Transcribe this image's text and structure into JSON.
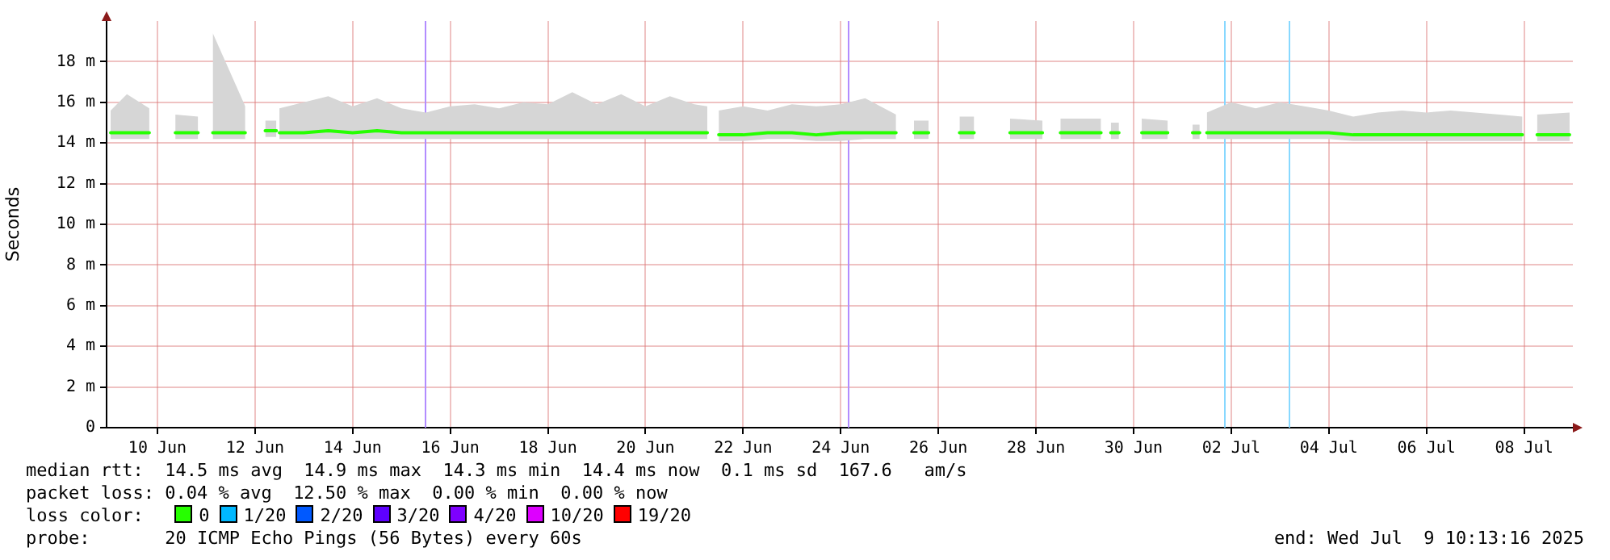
{
  "chart_data": {
    "type": "line",
    "ylabel": "Seconds",
    "legend_title": "loss color:",
    "legend": "bottom left",
    "grid": true,
    "marker": "none",
    "line_style": "solid",
    "xlim": [
      "2025-06-08T23:00",
      "2025-07-09T00:00"
    ],
    "xticks": [
      {
        "value": "2025-06-10",
        "label": "10 Jun"
      },
      {
        "value": "2025-06-12",
        "label": "12 Jun"
      },
      {
        "value": "2025-06-14",
        "label": "14 Jun"
      },
      {
        "value": "2025-06-16",
        "label": "16 Jun"
      },
      {
        "value": "2025-06-18",
        "label": "18 Jun"
      },
      {
        "value": "2025-06-20",
        "label": "20 Jun"
      },
      {
        "value": "2025-06-22",
        "label": "22 Jun"
      },
      {
        "value": "2025-06-24",
        "label": "24 Jun"
      },
      {
        "value": "2025-06-26",
        "label": "26 Jun"
      },
      {
        "value": "2025-06-28",
        "label": "28 Jun"
      },
      {
        "value": "2025-06-30",
        "label": "30 Jun"
      },
      {
        "value": "2025-07-02",
        "label": "02 Jul"
      },
      {
        "value": "2025-07-04",
        "label": "04 Jul"
      },
      {
        "value": "2025-07-06",
        "label": "06 Jul"
      },
      {
        "value": "2025-07-08",
        "label": "08 Jul"
      }
    ],
    "ylim": [
      0,
      20
    ],
    "yticks": [
      0,
      {
        "value": 2,
        "label": "2 m"
      },
      {
        "value": 4,
        "label": "4 m"
      },
      {
        "value": 6,
        "label": "6 m"
      },
      {
        "value": 8,
        "label": "8 m"
      },
      {
        "value": 10,
        "label": "10 m"
      },
      {
        "value": 12,
        "label": "12 m"
      },
      {
        "value": 14,
        "label": "14 m"
      },
      {
        "value": 16,
        "label": "16 m"
      },
      {
        "value": 18,
        "label": "18 m"
      }
    ],
    "x": [
      "2025-06-09T01:00",
      "2025-06-09T09:00",
      "2025-06-09T20:00",
      "2025-06-10T02:00",
      "2025-06-10T08:48",
      "2025-06-10T20:00",
      "2025-06-11T00:00",
      "2025-06-11T03:12",
      "2025-06-11T19:12",
      "2025-06-12T02:00",
      "2025-06-12T05:00",
      "2025-06-12T10:30",
      "2025-06-12T11:15",
      "2025-06-12T12:00",
      "2025-06-13T00:00",
      "2025-06-13T12:00",
      "2025-06-14T00:00",
      "2025-06-14T12:00",
      "2025-06-15T00:00",
      "2025-06-15T12:00",
      "2025-06-16T00:00",
      "2025-06-16T12:00",
      "2025-06-17T00:00",
      "2025-06-17T12:00",
      "2025-06-18T00:00",
      "2025-06-18T12:00",
      "2025-06-19T00:00",
      "2025-06-19T12:00",
      "2025-06-20T00:00",
      "2025-06-20T12:00",
      "2025-06-21T00:00",
      "2025-06-21T06:24",
      "2025-06-21T09:00",
      "2025-06-21T12:00",
      "2025-06-22T00:00",
      "2025-06-22T12:00",
      "2025-06-23T00:00",
      "2025-06-23T12:00",
      "2025-06-24T00:00",
      "2025-06-24T12:00",
      "2025-06-25T03:12",
      "2025-06-25T08:00",
      "2025-06-25T12:00",
      "2025-06-25T19:12",
      "2025-06-26T03:00",
      "2025-06-26T10:24",
      "2025-06-26T17:36",
      "2025-06-27T02:00",
      "2025-06-27T11:12",
      "2025-06-28T03:12",
      "2025-06-28T08:00",
      "2025-06-28T12:00",
      "2025-06-29T08:00",
      "2025-06-29T10:00",
      "2025-06-29T12:48",
      "2025-06-29T16:48",
      "2025-06-29T22:00",
      "2025-06-30T04:00",
      "2025-06-30T16:48",
      "2025-07-01T00:00",
      "2025-07-01T05:00",
      "2025-07-01T08:30",
      "2025-07-01T10:00",
      "2025-07-01T12:00",
      "2025-07-02T00:00",
      "2025-07-02T12:00",
      "2025-07-03T00:00",
      "2025-07-03T12:00",
      "2025-07-04T00:00",
      "2025-07-04T12:00",
      "2025-07-05T00:00",
      "2025-07-05T12:00",
      "2025-07-06T00:00",
      "2025-07-06T12:00",
      "2025-07-07T00:00",
      "2025-07-07T12:00",
      "2025-07-07T23:12",
      "2025-07-08T03:00",
      "2025-07-08T06:24",
      "2025-07-08T22:24"
    ],
    "series": [
      {
        "name": "0",
        "color": "#26ff00",
        "values": [
          14.5,
          14.5,
          14.5,
          null,
          14.5,
          14.5,
          null,
          14.5,
          14.5,
          null,
          14.6,
          14.6,
          null,
          14.5,
          14.5,
          14.6,
          14.5,
          14.6,
          14.5,
          14.5,
          14.5,
          14.5,
          14.5,
          14.5,
          14.5,
          14.5,
          14.5,
          14.5,
          14.5,
          14.5,
          14.5,
          14.5,
          null,
          14.4,
          14.4,
          14.5,
          14.5,
          14.4,
          14.5,
          14.5,
          14.5,
          null,
          14.5,
          14.5,
          null,
          14.5,
          14.5,
          null,
          14.5,
          14.5,
          null,
          14.5,
          14.5,
          null,
          14.5,
          14.5,
          null,
          14.5,
          14.5,
          null,
          14.5,
          14.5,
          null,
          14.5,
          14.5,
          14.5,
          14.5,
          14.5,
          14.5,
          14.4,
          14.4,
          14.4,
          14.4,
          14.4,
          14.4,
          14.4,
          14.4,
          null,
          14.4,
          14.4
        ],
        "lower": [
          14.2,
          14.2,
          14.2,
          null,
          14.2,
          14.2,
          null,
          14.2,
          14.2,
          null,
          14.3,
          14.3,
          null,
          14.2,
          14.2,
          14.2,
          14.2,
          14.2,
          14.2,
          14.2,
          14.2,
          14.2,
          14.2,
          14.2,
          14.2,
          14.2,
          14.2,
          14.2,
          14.2,
          14.2,
          14.2,
          14.2,
          null,
          14.1,
          14.1,
          14.2,
          14.2,
          14.1,
          14.1,
          14.2,
          14.2,
          null,
          14.2,
          14.2,
          null,
          14.2,
          14.2,
          null,
          14.2,
          14.2,
          null,
          14.2,
          14.2,
          null,
          14.2,
          14.2,
          null,
          14.2,
          14.2,
          null,
          14.2,
          14.2,
          null,
          14.2,
          14.2,
          14.2,
          14.2,
          14.2,
          14.2,
          14.1,
          14.1,
          14.1,
          14.1,
          14.1,
          14.1,
          14.1,
          14.1,
          null,
          14.1,
          14.1
        ],
        "upper": [
          15.6,
          16.4,
          15.7,
          null,
          15.4,
          15.3,
          null,
          19.4,
          15.8,
          null,
          15.1,
          15.1,
          null,
          15.7,
          16.0,
          16.3,
          15.8,
          16.2,
          15.7,
          15.5,
          15.8,
          15.9,
          15.7,
          16.0,
          15.9,
          16.5,
          15.9,
          16.4,
          15.8,
          16.3,
          15.9,
          15.8,
          null,
          15.6,
          15.8,
          15.6,
          15.9,
          15.8,
          15.9,
          16.2,
          15.4,
          null,
          15.1,
          15.1,
          null,
          15.3,
          15.3,
          null,
          15.2,
          15.1,
          null,
          15.2,
          15.2,
          null,
          15.0,
          15.0,
          null,
          15.2,
          15.1,
          null,
          14.9,
          14.9,
          null,
          15.5,
          16.0,
          15.7,
          16.0,
          15.8,
          15.6,
          15.3,
          15.5,
          15.6,
          15.5,
          15.6,
          15.5,
          15.4,
          15.3,
          null,
          15.4,
          15.5
        ]
      },
      {
        "name": "1/20",
        "color": "#00b8ff",
        "values": [
          null,
          null,
          null,
          null,
          null,
          null,
          null,
          null,
          null,
          null,
          null,
          null,
          null,
          null,
          null,
          null,
          null,
          null,
          null,
          null,
          null,
          null,
          null,
          null,
          null,
          null,
          null,
          null,
          null,
          null,
          null,
          null,
          null,
          null,
          null,
          null,
          null,
          null,
          null,
          null,
          null,
          null,
          null,
          null,
          null,
          null,
          null,
          null,
          null,
          null,
          null,
          null,
          null,
          null,
          null,
          null,
          null,
          null,
          null,
          null,
          null,
          null,
          null,
          null,
          null,
          null,
          null,
          null,
          null,
          null,
          null,
          null,
          null,
          null,
          null,
          null,
          null,
          null,
          null,
          null
        ]
      },
      {
        "name": "2/20",
        "color": "#0059ff",
        "values": [
          null,
          null,
          null,
          null,
          null,
          null,
          null,
          null,
          null,
          null,
          null,
          null,
          null,
          null,
          null,
          null,
          null,
          null,
          null,
          null,
          null,
          null,
          null,
          null,
          null,
          null,
          null,
          null,
          null,
          null,
          null,
          null,
          null,
          null,
          null,
          null,
          null,
          null,
          null,
          null,
          null,
          null,
          null,
          null,
          null,
          null,
          null,
          null,
          null,
          null,
          null,
          null,
          null,
          null,
          null,
          null,
          null,
          null,
          null,
          null,
          null,
          null,
          null,
          null,
          null,
          null,
          null,
          null,
          null,
          null,
          null,
          null,
          null,
          null,
          null,
          null,
          null,
          null,
          null,
          null
        ]
      },
      {
        "name": "3/20",
        "color": "#5e00ff",
        "values": [
          null,
          null,
          null,
          null,
          null,
          null,
          null,
          null,
          null,
          null,
          null,
          null,
          null,
          null,
          null,
          null,
          null,
          null,
          null,
          null,
          null,
          null,
          null,
          null,
          null,
          null,
          null,
          null,
          null,
          null,
          null,
          null,
          null,
          null,
          null,
          null,
          null,
          null,
          null,
          null,
          null,
          null,
          null,
          null,
          null,
          null,
          null,
          null,
          null,
          null,
          null,
          null,
          null,
          null,
          null,
          null,
          null,
          null,
          null,
          null,
          null,
          null,
          null,
          null,
          null,
          null,
          null,
          null,
          null,
          null,
          null,
          null,
          null,
          null,
          null,
          null,
          null,
          null,
          null,
          null
        ]
      },
      {
        "name": "4/20",
        "color": "#7e00ff",
        "values": [
          null,
          null,
          null,
          null,
          null,
          null,
          null,
          null,
          null,
          null,
          null,
          null,
          null,
          null,
          null,
          null,
          null,
          null,
          null,
          null,
          null,
          null,
          null,
          null,
          null,
          null,
          null,
          null,
          null,
          null,
          null,
          null,
          null,
          null,
          null,
          null,
          null,
          null,
          null,
          null,
          null,
          null,
          null,
          null,
          null,
          null,
          null,
          null,
          null,
          null,
          null,
          null,
          null,
          null,
          null,
          null,
          null,
          null,
          null,
          null,
          null,
          null,
          null,
          null,
          null,
          null,
          null,
          null,
          null,
          null,
          null,
          null,
          null,
          null,
          null,
          null,
          null,
          null,
          null,
          null
        ]
      },
      {
        "name": "10/20",
        "color": "#dd00ff",
        "values": [
          null,
          null,
          null,
          null,
          null,
          null,
          null,
          null,
          null,
          null,
          null,
          null,
          null,
          null,
          null,
          null,
          null,
          null,
          null,
          null,
          null,
          null,
          null,
          null,
          null,
          null,
          null,
          null,
          null,
          null,
          null,
          null,
          null,
          null,
          null,
          null,
          null,
          null,
          null,
          null,
          null,
          null,
          null,
          null,
          null,
          null,
          null,
          null,
          null,
          null,
          null,
          null,
          null,
          null,
          null,
          null,
          null,
          null,
          null,
          null,
          null,
          null,
          null,
          null,
          null,
          null,
          null,
          null,
          null,
          null,
          null,
          null,
          null,
          null,
          null,
          null,
          null,
          null,
          null,
          null
        ]
      },
      {
        "name": "19/20",
        "color": "#ff0000",
        "values": [
          null,
          null,
          null,
          null,
          null,
          null,
          null,
          null,
          null,
          null,
          null,
          null,
          null,
          null,
          null,
          null,
          null,
          null,
          null,
          null,
          null,
          null,
          null,
          null,
          null,
          null,
          null,
          null,
          null,
          null,
          null,
          null,
          null,
          null,
          null,
          null,
          null,
          null,
          null,
          null,
          null,
          null,
          null,
          null,
          null,
          null,
          null,
          null,
          null,
          null,
          null,
          null,
          null,
          null,
          null,
          null,
          null,
          null,
          null,
          null,
          null,
          null,
          null,
          null,
          null,
          null,
          null,
          null,
          null,
          null,
          null,
          null,
          null,
          null,
          null,
          null,
          null,
          null,
          null,
          null
        ]
      }
    ],
    "ref_lines": [
      {
        "axis": "x",
        "value": "2025-06-15T11:12",
        "color": "#b28cff"
      },
      {
        "axis": "x",
        "value": "2025-06-24T03:12",
        "color": "#b28cff"
      },
      {
        "axis": "x",
        "value": "2025-07-01T20:48",
        "color": "#87d8ff"
      },
      {
        "axis": "x",
        "value": "2025-07-03T04:00",
        "color": "#87d8ff"
      }
    ],
    "annotations": [
      "median rtt:  14.5 ms avg  14.9 ms max  14.3 ms min  14.4 ms now  0.1 ms sd  167.6   am/s",
      "packet loss: 0.04 % avg  12.50 % max  0.00 % min  0.00 % now",
      "probe:       20 ICMP Echo Pings (56 Bytes) every 60s",
      "end: Wed Jul  9 10:13:16 2025"
    ]
  }
}
